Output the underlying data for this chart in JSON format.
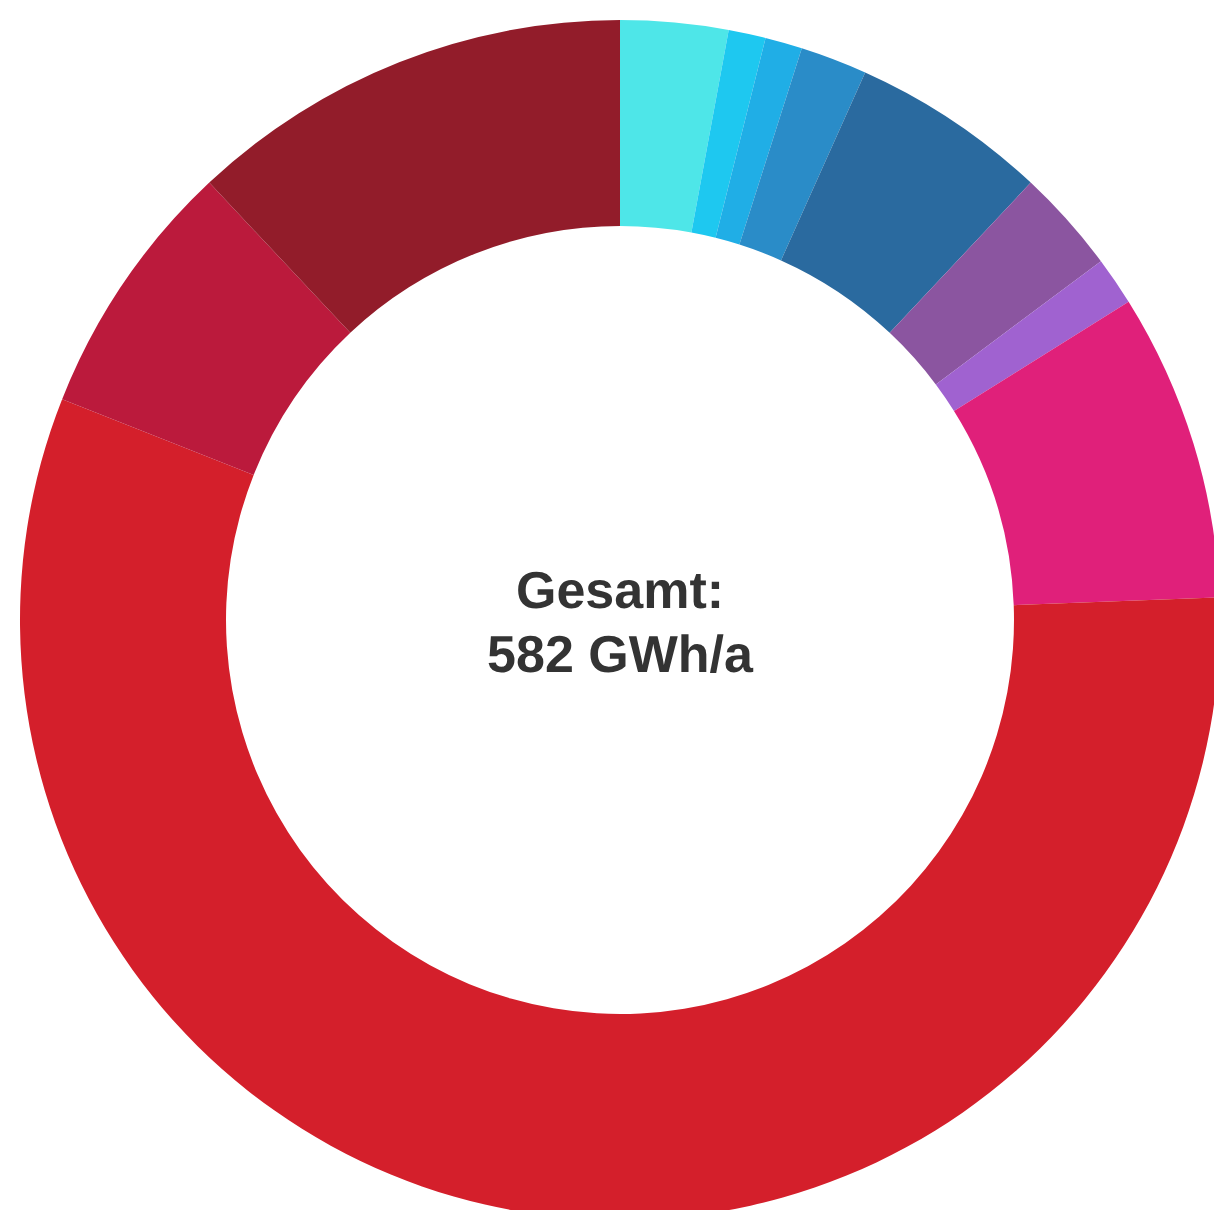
{
  "chart_data": {
    "type": "donut",
    "annotations": [
      "Gesamt:",
      "582 GWh/a"
    ],
    "categories": [
      null,
      null,
      null,
      null,
      null,
      null,
      null,
      null,
      null,
      null,
      null
    ],
    "values": [
      2.9,
      1.0,
      1.0,
      1.8,
      5.3,
      2.8,
      1.3,
      8.3,
      56.6,
      7.0,
      12.0
    ],
    "colors": [
      "#4ee6e8",
      "#1ec8f0",
      "#20aee6",
      "#2a8cc8",
      "#2a6a9f",
      "#8b55a0",
      "#a062d0",
      "#e0207a",
      "#d41f2b",
      "#bb1a3c",
      "#921c2a"
    ],
    "legend": false
  }
}
